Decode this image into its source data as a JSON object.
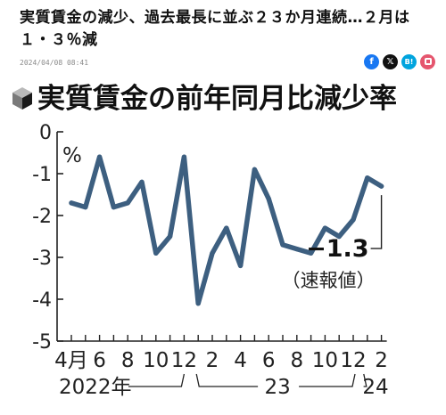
{
  "article": {
    "headline": "実質賃金の減少、過去最長に並ぶ２３か月連続…２月は１・３％減",
    "date": "2024/04/08 08:41"
  },
  "share_icons": [
    {
      "name": "facebook-icon",
      "glyph": "f"
    },
    {
      "name": "x-icon",
      "glyph": "𝕏"
    },
    {
      "name": "hatena-bookmark-icon",
      "glyph": "B!"
    },
    {
      "name": "line-icon",
      "glyph": ""
    }
  ],
  "colors": {
    "line": "#3d5f80",
    "axis": "#222222"
  },
  "chart_data": {
    "type": "line",
    "title": "実質賃金の前年同月比減少率",
    "icon": "cube-icon",
    "ylabel": "%",
    "ylim": [
      -5,
      0
    ],
    "yticks": [
      0,
      -1,
      -2,
      -3,
      -4,
      -5
    ],
    "ytick_labels": [
      "0",
      "-1",
      "-2",
      "-3",
      "-4",
      "-5"
    ],
    "x": [
      "2022-04",
      "2022-05",
      "2022-06",
      "2022-07",
      "2022-08",
      "2022-09",
      "2022-10",
      "2022-11",
      "2022-12",
      "2023-01",
      "2023-02",
      "2023-03",
      "2023-04",
      "2023-05",
      "2023-06",
      "2023-07",
      "2023-08",
      "2023-09",
      "2023-10",
      "2023-11",
      "2023-12",
      "2024-01",
      "2024-02"
    ],
    "values": [
      -1.7,
      -1.8,
      -0.6,
      -1.8,
      -1.7,
      -1.2,
      -2.9,
      -2.5,
      -0.6,
      -4.1,
      -2.9,
      -2.3,
      -3.2,
      -0.9,
      -1.6,
      -2.7,
      -2.8,
      -2.9,
      -2.3,
      -2.5,
      -2.1,
      -1.1,
      -1.3
    ],
    "xtick_labels": [
      {
        "x": "2022-04",
        "label": "4月"
      },
      {
        "x": "2022-06",
        "label": "6"
      },
      {
        "x": "2022-08",
        "label": "8"
      },
      {
        "x": "2022-10",
        "label": "10"
      },
      {
        "x": "2022-12",
        "label": "12"
      },
      {
        "x": "2023-02",
        "label": "2"
      },
      {
        "x": "2023-04",
        "label": "4"
      },
      {
        "x": "2023-06",
        "label": "6"
      },
      {
        "x": "2023-08",
        "label": "8"
      },
      {
        "x": "2023-10",
        "label": "10"
      },
      {
        "x": "2023-12",
        "label": "12"
      },
      {
        "x": "2024-02",
        "label": "2"
      }
    ],
    "year_labels": [
      {
        "label": "2022年",
        "from": "2022-04",
        "to": "2022-12"
      },
      {
        "label": "23",
        "from": "2023-01",
        "to": "2023-12"
      },
      {
        "label": "24",
        "from": "2024-01",
        "to": "2024-02"
      }
    ],
    "last_value_label": "−1.3",
    "last_value_note": "（速報値）"
  }
}
